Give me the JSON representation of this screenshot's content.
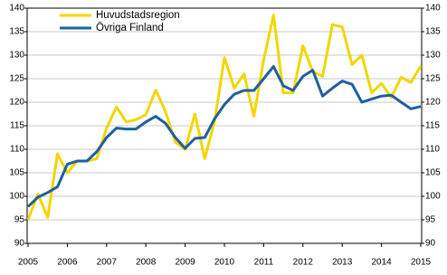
{
  "chart_data": {
    "type": "line",
    "categories": [
      "2005",
      null,
      null,
      null,
      "2006",
      null,
      null,
      null,
      "2007",
      null,
      null,
      null,
      "2008",
      null,
      null,
      null,
      "2009",
      null,
      null,
      null,
      "2010",
      null,
      null,
      null,
      "2011",
      null,
      null,
      null,
      "2012",
      null,
      null,
      null,
      "2013",
      null,
      null,
      null,
      "2014",
      null,
      null,
      null,
      "2015"
    ],
    "series": [
      {
        "name": "Huvudstadsregion",
        "color": "#f2d600",
        "values": [
          95,
          100.5,
          95.5,
          109,
          105,
          107.5,
          107.5,
          108,
          114.5,
          119,
          115.8,
          116.3,
          117.3,
          122.6,
          118,
          111.5,
          110,
          117.5,
          108,
          116,
          129.5,
          123,
          126,
          117,
          129,
          138.5,
          122,
          122,
          132,
          126.5,
          125.5,
          136.5,
          136,
          128,
          130,
          122,
          124,
          121,
          125.3,
          124.2,
          127.7
        ]
      },
      {
        "name": "Övriga Finland",
        "color": "#1f5fa0",
        "values": [
          97.8,
          99.8,
          100.8,
          102,
          106.8,
          107.5,
          107.5,
          109.5,
          112.5,
          114.5,
          114.3,
          114.3,
          115.8,
          117,
          115.5,
          112.5,
          110.2,
          112.3,
          112.5,
          116.5,
          119.5,
          121.7,
          122.5,
          122.5,
          125,
          127.6,
          123.5,
          122.5,
          125.5,
          126.8,
          121.3,
          123,
          124.5,
          123.8,
          120,
          120.7,
          121.3,
          121.5,
          120,
          118.6,
          119.1
        ]
      }
    ],
    "ylim": [
      90,
      140
    ],
    "yticks": [
      90,
      95,
      100,
      105,
      110,
      115,
      120,
      125,
      130,
      135,
      140
    ],
    "y2lim": [
      90,
      140
    ],
    "y2ticks": [
      90,
      95,
      100,
      105,
      110,
      115,
      120,
      125,
      130,
      135,
      140
    ],
    "grid": true,
    "legend": "top-left"
  }
}
